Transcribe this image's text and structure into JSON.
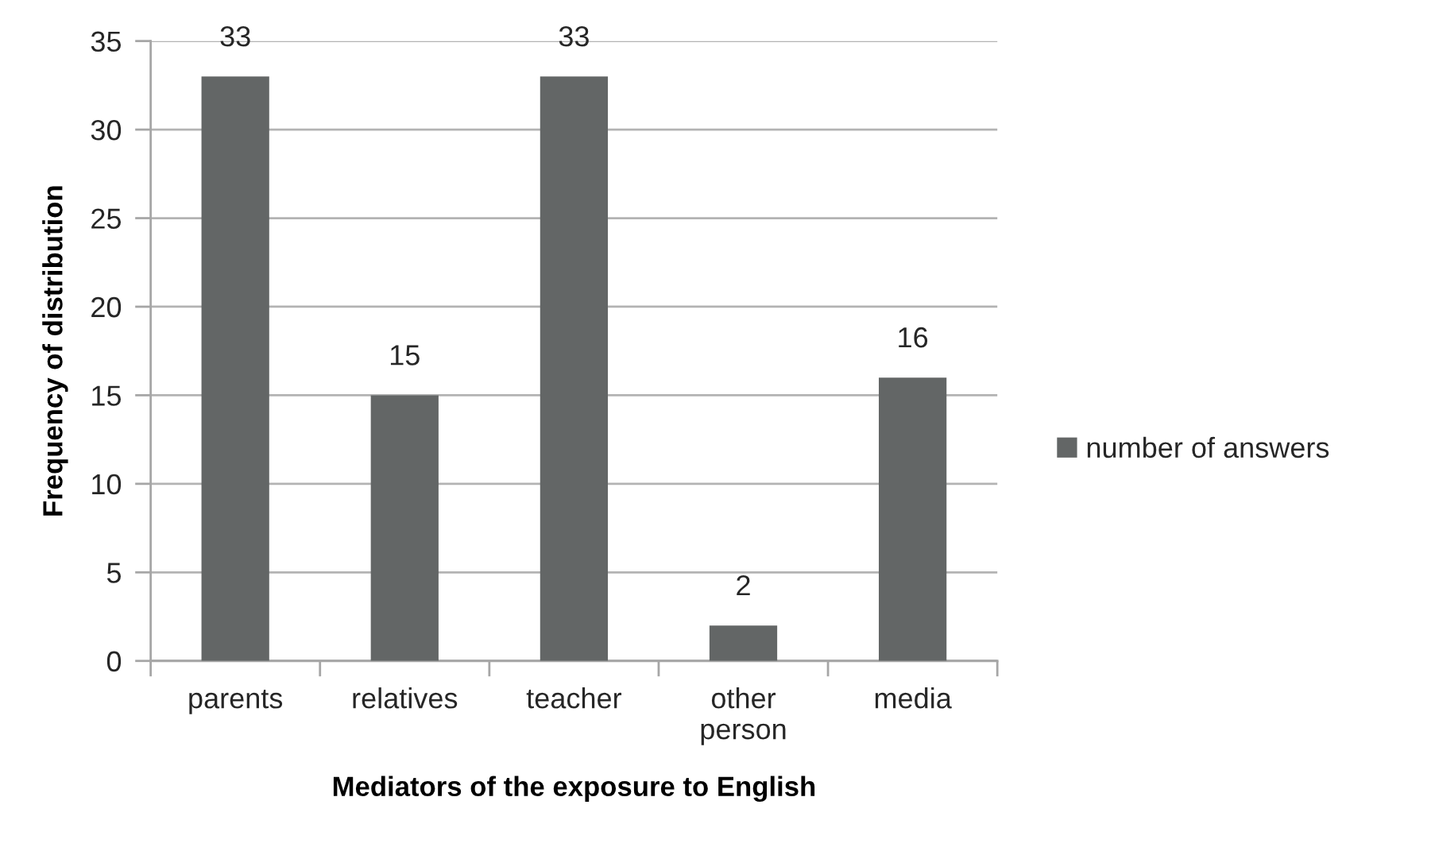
{
  "chart_data": {
    "type": "bar",
    "xlabel": "Mediators of the exposure to English",
    "ylabel": "Frequency of distribution",
    "categories": [
      "parents",
      "relatives",
      "teacher",
      "other person",
      "media"
    ],
    "series": [
      {
        "name": "number of answers",
        "color": "#636666",
        "values": [
          33,
          15,
          33,
          2,
          16
        ]
      }
    ],
    "ylim": [
      0,
      35
    ],
    "yticks": [
      0,
      5,
      10,
      15,
      20,
      25,
      30,
      35
    ],
    "grid": "y",
    "legend": "right",
    "data_labels": true
  }
}
